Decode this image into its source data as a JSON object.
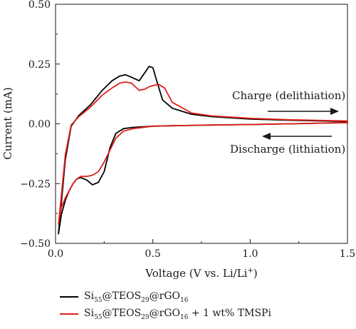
{
  "chart_data": {
    "type": "line",
    "xlabel": "Voltage (V vs. Li/Li",
    "xlabel_sup": "+",
    "xlabel_end": ")",
    "ylabel": "Current (mA)",
    "xlim": [
      0,
      1.5
    ],
    "ylim": [
      -0.5,
      0.5
    ],
    "xticks": [
      "0.0",
      "0.5",
      "1.0",
      "1.5"
    ],
    "yticks": [
      "0.50",
      "0.25",
      "0.00",
      "−0.25",
      "−0.50"
    ],
    "xtick_values": [
      0,
      0.5,
      1.0,
      1.5
    ],
    "ytick_values": [
      0.5,
      0.25,
      0,
      -0.25,
      -0.5
    ],
    "grid": false,
    "legend_position": "bottom",
    "annotations": [
      {
        "text": "Charge (delithiation)",
        "arrow": "right"
      },
      {
        "text": "Discharge (lithiation)",
        "arrow": "left"
      }
    ],
    "series": [
      {
        "color": "#000000",
        "legend": {
          "p1": "Si",
          "s1": "55",
          "p2": "@TEOS",
          "s2": "29",
          "p3": "@rGO",
          "s3": "16",
          "p4": ""
        },
        "x": [
          0.015,
          0.03,
          0.05,
          0.08,
          0.12,
          0.18,
          0.24,
          0.29,
          0.33,
          0.36,
          0.39,
          0.43,
          0.46,
          0.48,
          0.5,
          0.52,
          0.55,
          0.6,
          0.7,
          0.8,
          1.0,
          1.2,
          1.5,
          1.5,
          1.2,
          1.0,
          0.8,
          0.6,
          0.5,
          0.4,
          0.35,
          0.31,
          0.28,
          0.25,
          0.22,
          0.19,
          0.16,
          0.13,
          0.11,
          0.09,
          0.07,
          0.05,
          0.03,
          0.015
        ],
        "y": [
          -0.46,
          -0.33,
          -0.15,
          -0.01,
          0.035,
          0.08,
          0.14,
          0.18,
          0.2,
          0.205,
          0.195,
          0.18,
          0.215,
          0.24,
          0.235,
          0.18,
          0.1,
          0.065,
          0.04,
          0.03,
          0.02,
          0.015,
          0.01,
          0.005,
          0.0,
          -0.003,
          -0.005,
          -0.008,
          -0.01,
          -0.015,
          -0.02,
          -0.04,
          -0.1,
          -0.2,
          -0.245,
          -0.255,
          -0.235,
          -0.225,
          -0.23,
          -0.25,
          -0.28,
          -0.32,
          -0.38,
          -0.46
        ]
      },
      {
        "color": "#e0201b",
        "legend": {
          "p1": "Si",
          "s1": "55",
          "p2": "@TEOS",
          "s2": "29",
          "p3": "@rGO",
          "s3": "16",
          "p4": " + 1 wt% TMSPi"
        },
        "x": [
          0.015,
          0.03,
          0.05,
          0.08,
          0.12,
          0.18,
          0.24,
          0.29,
          0.33,
          0.36,
          0.39,
          0.43,
          0.46,
          0.48,
          0.5,
          0.53,
          0.56,
          0.6,
          0.7,
          0.8,
          1.0,
          1.2,
          1.5,
          1.5,
          1.2,
          1.0,
          0.8,
          0.6,
          0.5,
          0.4,
          0.35,
          0.31,
          0.28,
          0.25,
          0.22,
          0.19,
          0.16,
          0.13,
          0.11,
          0.09,
          0.07,
          0.05,
          0.03,
          0.015
        ],
        "y": [
          -0.42,
          -0.3,
          -0.13,
          -0.005,
          0.03,
          0.07,
          0.12,
          0.15,
          0.17,
          0.175,
          0.17,
          0.14,
          0.145,
          0.155,
          0.16,
          0.165,
          0.15,
          0.09,
          0.045,
          0.033,
          0.023,
          0.017,
          0.012,
          0.005,
          0.0,
          -0.003,
          -0.005,
          -0.008,
          -0.01,
          -0.02,
          -0.03,
          -0.06,
          -0.11,
          -0.16,
          -0.2,
          -0.215,
          -0.22,
          -0.22,
          -0.23,
          -0.25,
          -0.28,
          -0.31,
          -0.35,
          -0.42
        ]
      }
    ]
  }
}
